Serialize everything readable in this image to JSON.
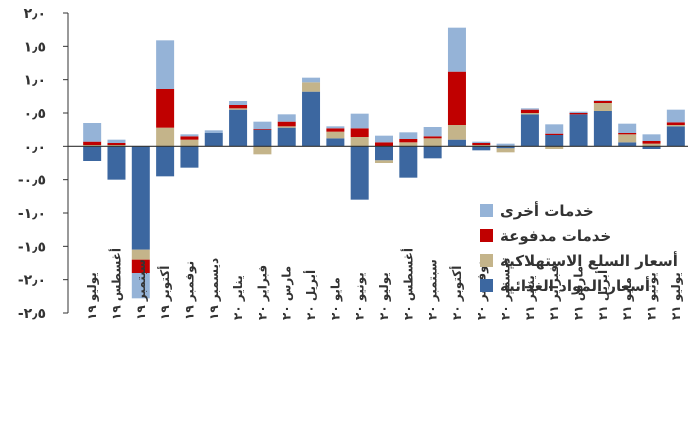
{
  "chart_data": {
    "type": "bar",
    "stacked": true,
    "categories": [
      "يوليو ١٩",
      "أغسطس ١٩",
      "سبتمبر ١٩",
      "أكتوبر ١٩",
      "نوفمبر ١٩",
      "ديسمبر ١٩",
      "يناير ٢٠",
      "فبراير ٢٠",
      "مارس ٢٠",
      "أبريل ٢٠",
      "مايو ٢٠",
      "يونيو ٢٠",
      "يوليو ٢٠",
      "أغسطس ٢٠",
      "سبتمبر ٢٠",
      "أكتوبر ٢٠",
      "نوفمبر ٢٠",
      "ديسمبر ٢٠",
      "يناير ٢١",
      "فبراير ٢١",
      "مارس ٢١",
      "أبريل ٢١",
      "مايو ٢١",
      "يونيو ٢١",
      "يوليو ٢١"
    ],
    "series": [
      {
        "name": "أسعار المواد الغذائية",
        "color": "#3c67a0",
        "values": [
          -0.22,
          -0.5,
          -1.55,
          -0.45,
          -0.32,
          0.2,
          0.55,
          0.25,
          0.28,
          0.82,
          0.12,
          -0.8,
          -0.21,
          -0.47,
          -0.18,
          0.1,
          -0.06,
          -0.03,
          0.48,
          0.17,
          0.48,
          0.53,
          0.06,
          -0.04,
          0.3
        ]
      },
      {
        "name": "أسعار السلع الاستهلاكية",
        "color": "#c4b48a",
        "values": [
          0.02,
          0.02,
          -0.15,
          0.28,
          0.1,
          0.0,
          0.02,
          -0.12,
          0.02,
          0.14,
          0.1,
          0.14,
          -0.04,
          0.06,
          0.12,
          0.22,
          0.02,
          -0.06,
          0.02,
          -0.04,
          0.0,
          0.12,
          0.12,
          0.04,
          0.02
        ]
      },
      {
        "name": "خدمات مدفوعة",
        "color": "#c00000",
        "values": [
          0.05,
          0.03,
          -0.2,
          0.58,
          0.05,
          0.0,
          0.05,
          0.01,
          0.07,
          0.0,
          0.05,
          0.13,
          0.06,
          0.05,
          0.03,
          0.8,
          0.03,
          0.0,
          0.05,
          0.02,
          0.02,
          0.03,
          0.02,
          0.04,
          0.04
        ]
      },
      {
        "name": "خدمات أخرى",
        "color": "#95b3d7",
        "values": [
          0.28,
          0.05,
          -0.38,
          0.73,
          0.03,
          0.04,
          0.06,
          0.11,
          0.11,
          0.07,
          0.03,
          0.22,
          0.1,
          0.1,
          0.14,
          0.66,
          0.02,
          0.04,
          0.02,
          0.14,
          0.02,
          0.01,
          0.14,
          0.1,
          0.19
        ]
      }
    ],
    "ylim": [
      -2.5,
      2.0
    ],
    "yticks": [
      "٢٫٠",
      "١٫٥",
      "١٫٠",
      "٠٫٥",
      "٠٫٠",
      "-٠٫٥",
      "-١٫٠",
      "-١٫٥",
      "-٢٫٠",
      "-٢٫٥"
    ],
    "ytick_values": [
      2.0,
      1.5,
      1.0,
      0.5,
      0.0,
      -0.5,
      -1.0,
      -1.5,
      -2.0,
      -2.5
    ],
    "legend_position": "right",
    "legend_order": [
      "خدمات أخرى",
      "خدمات مدفوعة",
      "أسعار السلع الاستهلاكية",
      "أسعار المواد الغذائية"
    ],
    "grid": false
  }
}
